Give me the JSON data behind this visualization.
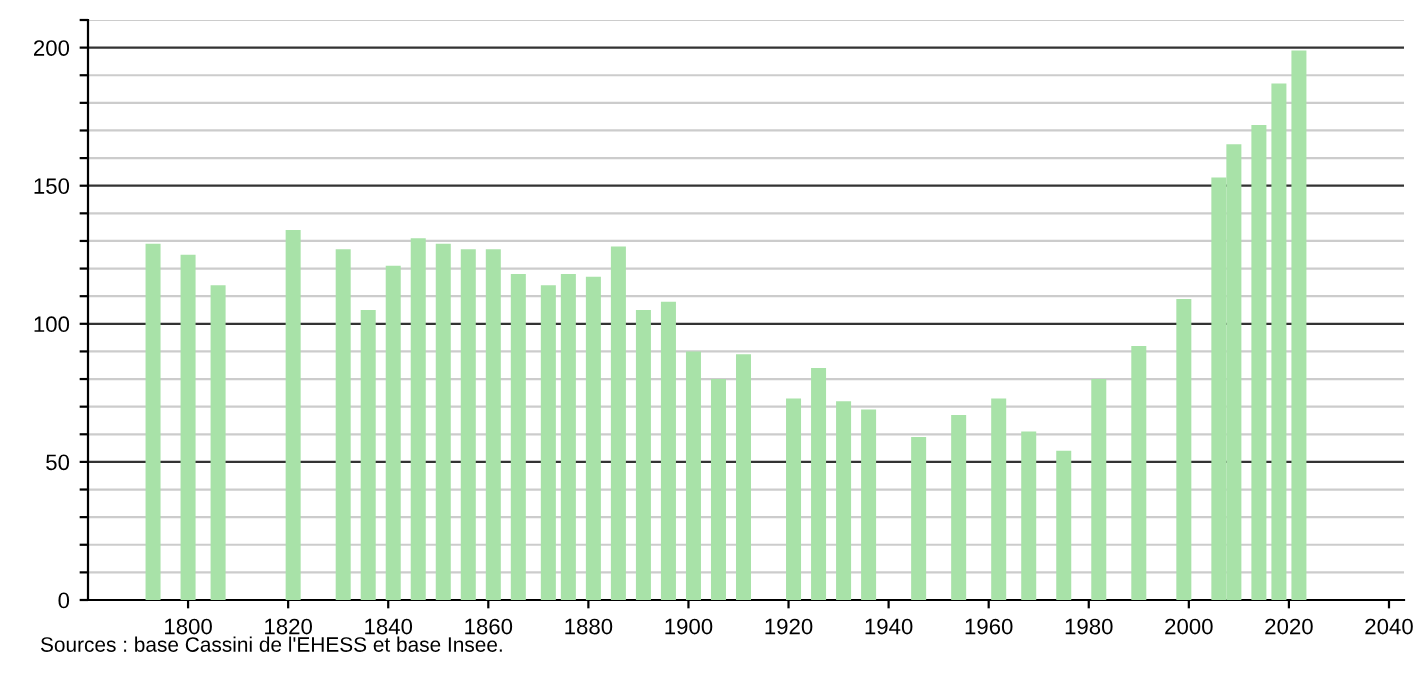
{
  "chart_data": {
    "type": "bar",
    "x": [
      1793,
      1800,
      1806,
      1821,
      1831,
      1836,
      1841,
      1846,
      1851,
      1856,
      1861,
      1866,
      1872,
      1876,
      1881,
      1886,
      1891,
      1896,
      1901,
      1906,
      1911,
      1921,
      1926,
      1931,
      1936,
      1946,
      1954,
      1962,
      1968,
      1975,
      1982,
      1990,
      1999,
      2006,
      2009,
      2014,
      2018,
      2022
    ],
    "values": [
      129,
      125,
      114,
      134,
      127,
      105,
      121,
      131,
      129,
      127,
      127,
      118,
      114,
      118,
      117,
      128,
      105,
      108,
      90,
      80,
      89,
      73,
      84,
      72,
      69,
      59,
      67,
      73,
      61,
      54,
      80,
      92,
      109,
      153,
      165,
      172,
      187,
      199
    ],
    "color": "#a8e2a8",
    "xlim": [
      1780,
      2043
    ],
    "xticks": [
      1800,
      1820,
      1840,
      1860,
      1880,
      1900,
      1920,
      1940,
      1960,
      1980,
      2000,
      2020,
      2040
    ],
    "ylim": [
      0,
      210
    ],
    "yticks": [
      0,
      {
        "value": 10,
        "label": null
      },
      {
        "value": 20,
        "label": null
      },
      {
        "value": 30,
        "label": null
      },
      {
        "value": 40,
        "label": null
      },
      50,
      {
        "value": 60,
        "label": null
      },
      {
        "value": 70,
        "label": null
      },
      {
        "value": 80,
        "label": null
      },
      {
        "value": 90,
        "label": null
      },
      100,
      {
        "value": 110,
        "label": null
      },
      {
        "value": 120,
        "label": null
      },
      {
        "value": 130,
        "label": null
      },
      {
        "value": 140,
        "label": null
      },
      150,
      {
        "value": 160,
        "label": null
      },
      {
        "value": 170,
        "label": null
      },
      {
        "value": 180,
        "label": null
      },
      {
        "value": 190,
        "label": null
      },
      200,
      {
        "value": 210,
        "label": null
      }
    ],
    "grid": "y",
    "annotations": [
      "Sources : base Cassini de l'EHESS et base Insee."
    ]
  }
}
